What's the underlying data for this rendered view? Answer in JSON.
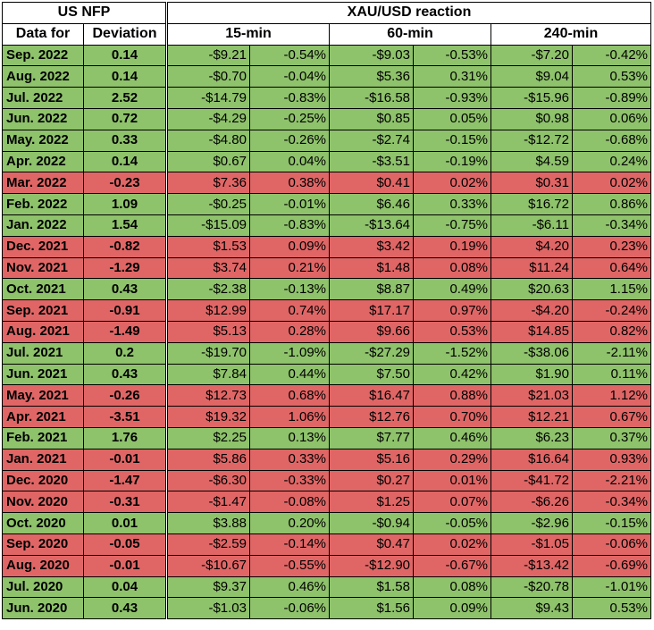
{
  "header": {
    "us_nfp": "US NFP",
    "xau_reaction": "XAU/USD reaction",
    "data_for": "Data for",
    "deviation": "Deviation",
    "t15": "15-min",
    "t60": "60-min",
    "t240": "240-min"
  },
  "colors": {
    "positive": "#8ec26b",
    "negative": "#e06666"
  },
  "rows": [
    {
      "date": "Sep. 2022",
      "dev": "0.14",
      "c": "g",
      "v": [
        "-$9.21",
        "-0.54%",
        "-$9.03",
        "-0.53%",
        "-$7.20",
        "-0.42%"
      ]
    },
    {
      "date": "Aug. 2022",
      "dev": "0.14",
      "c": "g",
      "v": [
        "-$0.70",
        "-0.04%",
        "$5.36",
        "0.31%",
        "$9.04",
        "0.53%"
      ]
    },
    {
      "date": "Jul. 2022",
      "dev": "2.52",
      "c": "g",
      "v": [
        "-$14.79",
        "-0.83%",
        "-$16.58",
        "-0.93%",
        "-$15.96",
        "-0.89%"
      ]
    },
    {
      "date": "Jun. 2022",
      "dev": "0.72",
      "c": "g",
      "v": [
        "-$4.29",
        "-0.25%",
        "$0.85",
        "0.05%",
        "$0.98",
        "0.06%"
      ]
    },
    {
      "date": "May. 2022",
      "dev": "0.33",
      "c": "g",
      "v": [
        "-$4.80",
        "-0.26%",
        "-$2.74",
        "-0.15%",
        "-$12.72",
        "-0.68%"
      ]
    },
    {
      "date": "Apr. 2022",
      "dev": "0.14",
      "c": "g",
      "v": [
        "$0.67",
        "0.04%",
        "-$3.51",
        "-0.19%",
        "$4.59",
        "0.24%"
      ]
    },
    {
      "date": "Mar. 2022",
      "dev": "-0.23",
      "c": "r",
      "v": [
        "$7.36",
        "0.38%",
        "$0.41",
        "0.02%",
        "$0.31",
        "0.02%"
      ]
    },
    {
      "date": "Feb. 2022",
      "dev": "1.09",
      "c": "g",
      "v": [
        "-$0.25",
        "-0.01%",
        "$6.46",
        "0.33%",
        "$16.72",
        "0.86%"
      ]
    },
    {
      "date": "Jan. 2022",
      "dev": "1.54",
      "c": "g",
      "v": [
        "-$15.09",
        "-0.83%",
        "-$13.64",
        "-0.75%",
        "-$6.11",
        "-0.34%"
      ]
    },
    {
      "date": "Dec. 2021",
      "dev": "-0.82",
      "c": "r",
      "v": [
        "$1.53",
        "0.09%",
        "$3.42",
        "0.19%",
        "$4.20",
        "0.23%"
      ]
    },
    {
      "date": "Nov. 2021",
      "dev": "-1.29",
      "c": "r",
      "v": [
        "$3.74",
        "0.21%",
        "$1.48",
        "0.08%",
        "$11.24",
        "0.64%"
      ]
    },
    {
      "date": "Oct. 2021",
      "dev": "0.43",
      "c": "g",
      "v": [
        "-$2.38",
        "-0.13%",
        "$8.87",
        "0.49%",
        "$20.63",
        "1.15%"
      ]
    },
    {
      "date": "Sep. 2021",
      "dev": "-0.91",
      "c": "r",
      "v": [
        "$12.99",
        "0.74%",
        "$17.17",
        "0.97%",
        "-$4.20",
        "-0.24%"
      ]
    },
    {
      "date": "Aug. 2021",
      "dev": "-1.49",
      "c": "r",
      "v": [
        "$5.13",
        "0.28%",
        "$9.66",
        "0.53%",
        "$14.85",
        "0.82%"
      ]
    },
    {
      "date": "Jul. 2021",
      "dev": "0.2",
      "c": "g",
      "v": [
        "-$19.70",
        "-1.09%",
        "-$27.29",
        "-1.52%",
        "-$38.06",
        "-2.11%"
      ]
    },
    {
      "date": "Jun. 2021",
      "dev": "0.43",
      "c": "g",
      "v": [
        "$7.84",
        "0.44%",
        "$7.50",
        "0.42%",
        "$1.90",
        "0.11%"
      ]
    },
    {
      "date": "May. 2021",
      "dev": "-0.26",
      "c": "r",
      "v": [
        "$12.73",
        "0.68%",
        "$16.47",
        "0.88%",
        "$21.03",
        "1.12%"
      ]
    },
    {
      "date": "Apr. 2021",
      "dev": "-3.51",
      "c": "r",
      "v": [
        "$19.32",
        "1.06%",
        "$12.76",
        "0.70%",
        "$12.21",
        "0.67%"
      ]
    },
    {
      "date": "Feb. 2021",
      "dev": "1.76",
      "c": "g",
      "v": [
        "$2.25",
        "0.13%",
        "$7.77",
        "0.46%",
        "$6.23",
        "0.37%"
      ]
    },
    {
      "date": "Jan. 2021",
      "dev": "-0.01",
      "c": "r",
      "v": [
        "$5.86",
        "0.33%",
        "$5.16",
        "0.29%",
        "$16.64",
        "0.93%"
      ]
    },
    {
      "date": "Dec. 2020",
      "dev": "-1.47",
      "c": "r",
      "v": [
        "-$6.30",
        "-0.33%",
        "$0.27",
        "0.01%",
        "-$41.72",
        "-2.21%"
      ]
    },
    {
      "date": "Nov. 2020",
      "dev": "-0.31",
      "c": "r",
      "v": [
        "-$1.47",
        "-0.08%",
        "$1.25",
        "0.07%",
        "-$6.26",
        "-0.34%"
      ]
    },
    {
      "date": "Oct. 2020",
      "dev": "0.01",
      "c": "g",
      "v": [
        "$3.88",
        "0.20%",
        "-$0.94",
        "-0.05%",
        "-$2.96",
        "-0.15%"
      ]
    },
    {
      "date": "Sep. 2020",
      "dev": "-0.05",
      "c": "r",
      "v": [
        "-$2.59",
        "-0.14%",
        "$0.47",
        "0.02%",
        "-$1.05",
        "-0.06%"
      ]
    },
    {
      "date": "Aug. 2020",
      "dev": "-0.01",
      "c": "r",
      "v": [
        "-$10.67",
        "-0.55%",
        "-$12.90",
        "-0.67%",
        "-$13.42",
        "-0.69%"
      ]
    },
    {
      "date": "Jul. 2020",
      "dev": "0.04",
      "c": "g",
      "v": [
        "$9.37",
        "0.46%",
        "$1.58",
        "0.08%",
        "-$20.78",
        "-1.01%"
      ]
    },
    {
      "date": "Jun. 2020",
      "dev": "0.43",
      "c": "g",
      "v": [
        "-$1.03",
        "-0.06%",
        "$1.56",
        "0.09%",
        "$9.43",
        "0.53%"
      ]
    }
  ]
}
